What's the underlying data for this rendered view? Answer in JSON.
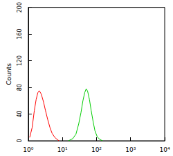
{
  "chart_data": {
    "type": "line",
    "y_label": "Counts",
    "log": "x",
    "grid": false,
    "xlim": [
      1,
      10000
    ],
    "xticks": [
      {
        "value": 1,
        "label": "10⁰"
      },
      {
        "value": 10,
        "label": "10¹"
      },
      {
        "value": 100,
        "label": "10²"
      },
      {
        "value": 1000,
        "label": "10³"
      },
      {
        "value": 10000,
        "label": "10⁴"
      }
    ],
    "ylim": [
      0,
      200
    ],
    "yticks": [
      0,
      40,
      80,
      120,
      160,
      200
    ],
    "series": [
      {
        "color": "#ff0000",
        "x": [
          1.1,
          1.3,
          1.5,
          1.7,
          1.9,
          2.1,
          2.4,
          2.8,
          3.2,
          3.7,
          4.3,
          5,
          6,
          7,
          8
        ],
        "values": [
          5,
          20,
          45,
          62,
          72,
          75,
          70,
          58,
          45,
          32,
          20,
          11,
          5,
          2,
          0
        ]
      },
      {
        "color": "#00cc00",
        "x": [
          15,
          20,
          25,
          30,
          35,
          40,
          45,
          50,
          55,
          62,
          70,
          80,
          90,
          105,
          125,
          150
        ],
        "values": [
          0,
          3,
          10,
          25,
          42,
          60,
          72,
          78,
          74,
          62,
          45,
          28,
          15,
          6,
          2,
          0
        ]
      }
    ]
  }
}
